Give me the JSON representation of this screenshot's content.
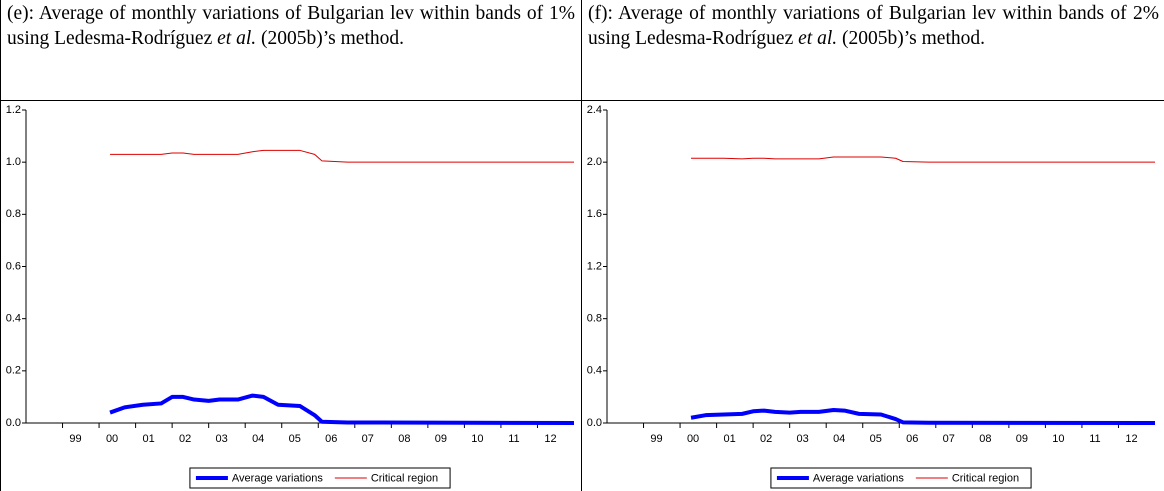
{
  "chart_data": [
    {
      "type": "line",
      "title": [
        "(e): Average of monthly variations of Bulgarian lev within bands of 1% using Ledesma-Rodríguez ",
        "et al.",
        " (2005b)’s method."
      ],
      "x": [
        2000.3,
        2000.7,
        2001.2,
        2001.7,
        2002.0,
        2002.3,
        2002.6,
        2003.0,
        2003.3,
        2003.8,
        2004.2,
        2004.5,
        2004.9,
        2005.5,
        2005.9,
        2006.1,
        2006.8,
        2013.0
      ],
      "xlim": [
        1998,
        2013
      ],
      "xticks": [
        {
          "value": 1999,
          "label": "99"
        },
        {
          "value": 2000,
          "label": "00"
        },
        {
          "value": 2001,
          "label": "01"
        },
        {
          "value": 2002,
          "label": "02"
        },
        {
          "value": 2003,
          "label": "03"
        },
        {
          "value": 2004,
          "label": "04"
        },
        {
          "value": 2005,
          "label": "05"
        },
        {
          "value": 2006,
          "label": "06"
        },
        {
          "value": 2007,
          "label": "07"
        },
        {
          "value": 2008,
          "label": "08"
        },
        {
          "value": 2009,
          "label": "09"
        },
        {
          "value": 2010,
          "label": "10"
        },
        {
          "value": 2011,
          "label": "11"
        },
        {
          "value": 2012,
          "label": "12"
        }
      ],
      "ylim": [
        0,
        1.2
      ],
      "yticks": [
        {
          "value": 0,
          "label": "0.0"
        },
        0.2,
        0.4,
        0.6,
        0.8,
        {
          "value": 1,
          "label": "1.0"
        },
        1.2
      ],
      "series": [
        {
          "name": "Average variations",
          "color": "#0000ff",
          "linewidth": 4,
          "values": [
            0.04,
            0.06,
            0.07,
            0.075,
            0.1,
            0.1,
            0.09,
            0.085,
            0.09,
            0.09,
            0.105,
            0.1,
            0.07,
            0.065,
            0.03,
            0.005,
            0.002,
            0
          ]
        },
        {
          "name": "Critical region",
          "color": "#dd0000",
          "linewidth": 1,
          "values": [
            1.03,
            1.03,
            1.03,
            1.03,
            1.035,
            1.035,
            1.03,
            1.03,
            1.03,
            1.03,
            1.04,
            1.045,
            1.045,
            1.045,
            1.03,
            1.005,
            1.0,
            1.0
          ]
        }
      ]
    },
    {
      "type": "line",
      "title": [
        "(f): Average of monthly variations of Bulgarian lev within bands of 2% using Ledesma-Rodríguez ",
        "et al.",
        " (2005b)’s method."
      ],
      "x": [
        2000.3,
        2000.7,
        2001.2,
        2001.7,
        2002.0,
        2002.3,
        2002.6,
        2003.0,
        2003.3,
        2003.8,
        2004.2,
        2004.5,
        2004.9,
        2005.5,
        2005.9,
        2006.1,
        2006.8,
        2013.0
      ],
      "xlim": [
        1998,
        2013
      ],
      "xticks": [
        {
          "value": 1999,
          "label": "99"
        },
        {
          "value": 2000,
          "label": "00"
        },
        {
          "value": 2001,
          "label": "01"
        },
        {
          "value": 2002,
          "label": "02"
        },
        {
          "value": 2003,
          "label": "03"
        },
        {
          "value": 2004,
          "label": "04"
        },
        {
          "value": 2005,
          "label": "05"
        },
        {
          "value": 2006,
          "label": "06"
        },
        {
          "value": 2007,
          "label": "07"
        },
        {
          "value": 2008,
          "label": "08"
        },
        {
          "value": 2009,
          "label": "09"
        },
        {
          "value": 2010,
          "label": "10"
        },
        {
          "value": 2011,
          "label": "11"
        },
        {
          "value": 2012,
          "label": "12"
        }
      ],
      "ylim": [
        0,
        2.4
      ],
      "yticks": [
        {
          "value": 0,
          "label": "0.0"
        },
        0.4,
        0.8,
        1.2,
        1.6,
        {
          "value": 2,
          "label": "2.0"
        },
        2.4
      ],
      "series": [
        {
          "name": "Average variations",
          "color": "#0000ff",
          "linewidth": 4,
          "values": [
            0.04,
            0.06,
            0.065,
            0.07,
            0.09,
            0.095,
            0.085,
            0.08,
            0.085,
            0.085,
            0.1,
            0.095,
            0.07,
            0.065,
            0.03,
            0.005,
            0.002,
            0
          ]
        },
        {
          "name": "Critical region",
          "color": "#dd0000",
          "linewidth": 1,
          "values": [
            2.03,
            2.03,
            2.03,
            2.025,
            2.03,
            2.03,
            2.025,
            2.025,
            2.025,
            2.025,
            2.04,
            2.04,
            2.04,
            2.04,
            2.03,
            2.005,
            2.0,
            2.0
          ]
        }
      ]
    }
  ]
}
